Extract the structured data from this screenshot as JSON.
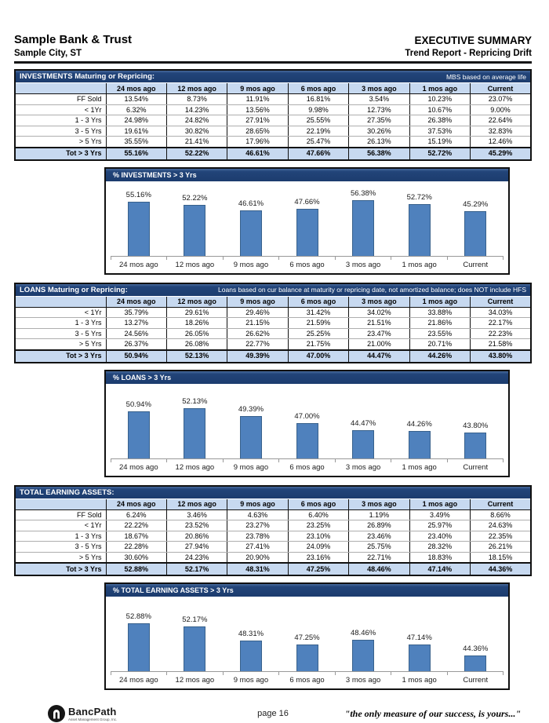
{
  "header": {
    "bank_name": "Sample Bank & Trust",
    "location": "Sample City, ST",
    "report_title": "EXECUTIVE SUMMARY",
    "report_subtitle": "Trend Report - Repricing Drift"
  },
  "columns": [
    "24 mos ago",
    "12 mos ago",
    "9 mos ago",
    "6 mos ago",
    "3 mos ago",
    "1 mos ago",
    "Current"
  ],
  "sections": [
    {
      "id": "investments",
      "title": "INVESTMENTS Maturing or Repricing:",
      "note": "MBS based on average life",
      "rows": [
        {
          "label": "FF Sold",
          "values": [
            "13.54%",
            "8.73%",
            "11.91%",
            "16.81%",
            "3.54%",
            "10.23%",
            "23.07%"
          ]
        },
        {
          "label": "<  1Yr",
          "values": [
            "6.32%",
            "14.23%",
            "13.56%",
            "9.98%",
            "12.73%",
            "10.67%",
            "9.00%"
          ]
        },
        {
          "label": "1 - 3 Yrs",
          "values": [
            "24.98%",
            "24.82%",
            "27.91%",
            "25.55%",
            "27.35%",
            "26.38%",
            "22.64%"
          ]
        },
        {
          "label": "3 - 5 Yrs",
          "values": [
            "19.61%",
            "30.82%",
            "28.65%",
            "22.19%",
            "30.26%",
            "37.53%",
            "32.83%"
          ]
        },
        {
          "label": "> 5 Yrs",
          "values": [
            "35.55%",
            "21.41%",
            "17.96%",
            "25.47%",
            "26.13%",
            "15.19%",
            "12.46%"
          ]
        }
      ],
      "total": {
        "label": "Tot  > 3 Yrs",
        "values": [
          "55.16%",
          "52.22%",
          "46.61%",
          "47.66%",
          "56.38%",
          "52.72%",
          "45.29%"
        ]
      }
    },
    {
      "id": "loans",
      "title": "LOANS Maturing or Repricing:",
      "note": "Loans based on cur balance at maturity or repricing date, not amortized balance; does NOT include HFS",
      "rows": [
        {
          "label": "<  1Yr",
          "values": [
            "35.79%",
            "29.61%",
            "29.46%",
            "31.42%",
            "34.02%",
            "33.88%",
            "34.03%"
          ]
        },
        {
          "label": "1 - 3 Yrs",
          "values": [
            "13.27%",
            "18.26%",
            "21.15%",
            "21.59%",
            "21.51%",
            "21.86%",
            "22.17%"
          ]
        },
        {
          "label": "3 - 5 Yrs",
          "values": [
            "24.56%",
            "26.05%",
            "26.62%",
            "25.25%",
            "23.47%",
            "23.55%",
            "22.23%"
          ]
        },
        {
          "label": "> 5 Yrs",
          "values": [
            "26.37%",
            "26.08%",
            "22.77%",
            "21.75%",
            "21.00%",
            "20.71%",
            "21.58%"
          ]
        }
      ],
      "total": {
        "label": "Tot  > 3 Yrs",
        "values": [
          "50.94%",
          "52.13%",
          "49.39%",
          "47.00%",
          "44.47%",
          "44.26%",
          "43.80%"
        ]
      }
    },
    {
      "id": "total-earning-assets",
      "title": "TOTAL EARNING ASSETS:",
      "note": "",
      "rows": [
        {
          "label": "FF Sold",
          "values": [
            "6.24%",
            "3.46%",
            "4.63%",
            "6.40%",
            "1.19%",
            "3.49%",
            "8.66%"
          ]
        },
        {
          "label": "<  1Yr",
          "values": [
            "22.22%",
            "23.52%",
            "23.27%",
            "23.25%",
            "26.89%",
            "25.97%",
            "24.63%"
          ]
        },
        {
          "label": "1 - 3 Yrs",
          "values": [
            "18.67%",
            "20.86%",
            "23.78%",
            "23.10%",
            "23.46%",
            "23.40%",
            "22.35%"
          ]
        },
        {
          "label": "3 - 5 Yrs",
          "values": [
            "22.28%",
            "27.94%",
            "27.41%",
            "24.09%",
            "25.75%",
            "28.32%",
            "26.21%"
          ]
        },
        {
          "label": "> 5 Yrs",
          "values": [
            "30.60%",
            "24.23%",
            "20.90%",
            "23.16%",
            "22.71%",
            "18.83%",
            "18.15%"
          ]
        }
      ],
      "total": {
        "label": "Tot  > 3 Yrs",
        "values": [
          "52.88%",
          "52.17%",
          "48.31%",
          "47.25%",
          "48.46%",
          "47.14%",
          "44.36%"
        ]
      }
    }
  ],
  "chart_data": [
    {
      "type": "bar",
      "title": "% INVESTMENTS > 3 Yrs",
      "categories": [
        "24 mos ago",
        "12 mos ago",
        "9 mos ago",
        "6 mos ago",
        "3 mos ago",
        "1 mos ago",
        "Current"
      ],
      "values": [
        55.16,
        52.22,
        46.61,
        47.66,
        56.38,
        52.72,
        45.29
      ],
      "xlabel": "",
      "ylabel": "",
      "ylim": [
        0,
        75
      ],
      "data_labels": true,
      "y_axis_visible": false,
      "legend": "none"
    },
    {
      "type": "bar",
      "title": "% LOANS > 3 Yrs",
      "categories": [
        "24 mos ago",
        "12 mos ago",
        "9 mos ago",
        "6 mos ago",
        "3 mos ago",
        "1 mos ago",
        "Current"
      ],
      "values": [
        50.94,
        52.13,
        49.39,
        47.0,
        44.47,
        44.26,
        43.8
      ],
      "xlabel": "",
      "ylabel": "",
      "ylim": [
        35,
        60
      ],
      "data_labels": true,
      "y_axis_visible": false,
      "legend": "none"
    },
    {
      "type": "bar",
      "title": "% TOTAL EARNING ASSETS > 3 Yrs",
      "categories": [
        "24 mos ago",
        "12 mos ago",
        "9 mos ago",
        "6 mos ago",
        "3 mos ago",
        "1 mos ago",
        "Current"
      ],
      "values": [
        52.88,
        52.17,
        48.31,
        47.25,
        48.46,
        47.14,
        44.36
      ],
      "xlabel": "",
      "ylabel": "",
      "ylim": [
        40,
        60
      ],
      "data_labels": true,
      "y_axis_visible": false,
      "legend": "none"
    }
  ],
  "footer": {
    "logo_text": "BancPath",
    "logo_subtext": "Asset Management Group, Inc.",
    "page_label": "page 16",
    "quote": "\"the only measure of our success, is yours...\""
  },
  "colors": {
    "navy": "#1c3c6e",
    "table_header_blue": "#c7d9f0",
    "bar_blue": "#4f81bd",
    "bar_border": "#38618c",
    "axis_gray": "#999999"
  }
}
